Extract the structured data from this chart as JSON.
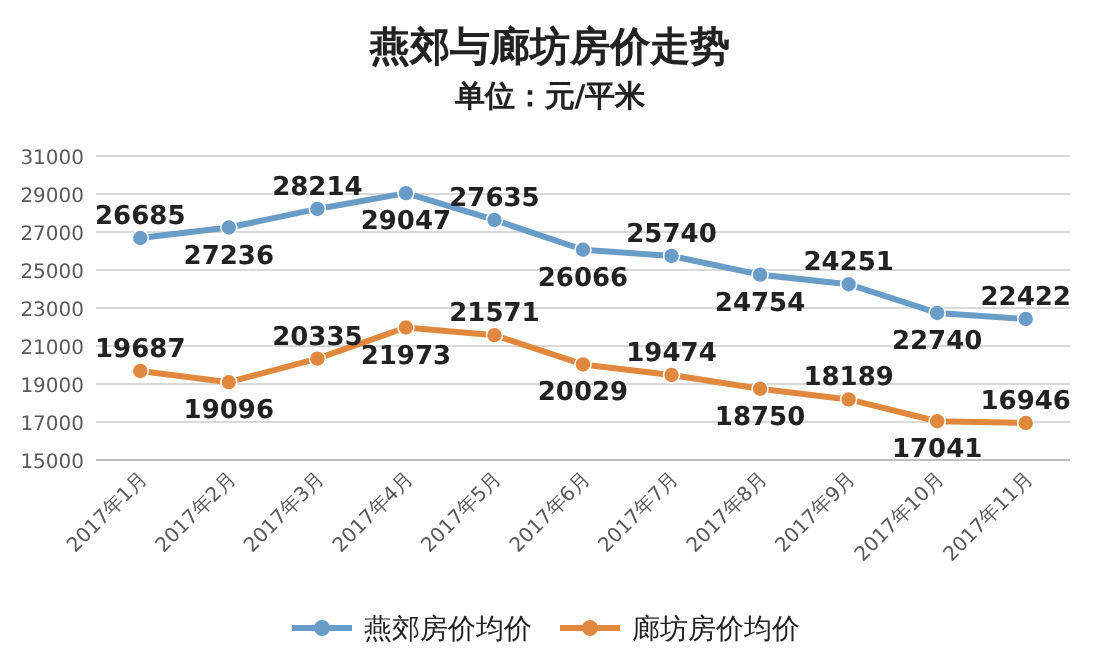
{
  "chart_data": {
    "type": "line",
    "title": "燕郊与廊坊房价走势",
    "subtitle": "单位：元/平米",
    "categories": [
      "2017年1月",
      "2017年2月",
      "2017年3月",
      "2017年4月",
      "2017年5月",
      "2017年6月",
      "2017年7月",
      "2017年8月",
      "2017年9月",
      "2017年10月",
      "2017年11月"
    ],
    "series": [
      {
        "name": "燕郊房价均价",
        "color": "#6a9cc8",
        "values": [
          26685,
          27236,
          28214,
          29047,
          27635,
          26066,
          25740,
          24754,
          24251,
          22740,
          22422
        ]
      },
      {
        "name": "廊坊房价均价",
        "color": "#e0893e",
        "values": [
          19687,
          19096,
          20335,
          21973,
          21571,
          20029,
          19474,
          18750,
          18189,
          17041,
          16946
        ]
      }
    ],
    "ylim": [
      15000,
      31000
    ],
    "yticks": [
      15000,
      17000,
      19000,
      21000,
      23000,
      25000,
      27000,
      29000,
      31000
    ],
    "grid": "y",
    "legend": "bottom",
    "marker": "circle",
    "line_style": "solid",
    "data_labels": true
  }
}
